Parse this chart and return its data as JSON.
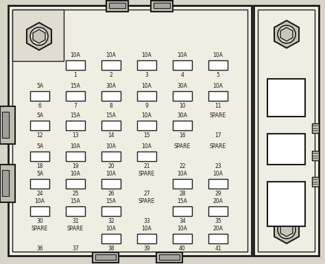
{
  "bg_color": "#e8e4d8",
  "fuses": [
    {
      "label": "10A",
      "num": "1",
      "col": 1,
      "row": 0,
      "has_fuse": true
    },
    {
      "label": "10A",
      "num": "2",
      "col": 2,
      "row": 0,
      "has_fuse": true
    },
    {
      "label": "10A",
      "num": "3",
      "col": 3,
      "row": 0,
      "has_fuse": true
    },
    {
      "label": "10A",
      "num": "4",
      "col": 4,
      "row": 0,
      "has_fuse": true
    },
    {
      "label": "10A",
      "num": "5",
      "col": 5,
      "row": 0,
      "has_fuse": true
    },
    {
      "label": "5A",
      "num": "6",
      "col": 0,
      "row": 1,
      "has_fuse": true
    },
    {
      "label": "15A",
      "num": "7",
      "col": 1,
      "row": 1,
      "has_fuse": true
    },
    {
      "label": "30A",
      "num": "8",
      "col": 2,
      "row": 1,
      "has_fuse": true
    },
    {
      "label": "10A",
      "num": "9",
      "col": 3,
      "row": 1,
      "has_fuse": true
    },
    {
      "label": "30A",
      "num": "10",
      "col": 4,
      "row": 1,
      "has_fuse": true
    },
    {
      "label": "10A",
      "num": "11",
      "col": 5,
      "row": 1,
      "has_fuse": true
    },
    {
      "label": "5A",
      "num": "12",
      "col": 0,
      "row": 2,
      "has_fuse": true
    },
    {
      "label": "15A",
      "num": "13",
      "col": 1,
      "row": 2,
      "has_fuse": true
    },
    {
      "label": "15A",
      "num": "14",
      "col": 2,
      "row": 2,
      "has_fuse": true
    },
    {
      "label": "10A",
      "num": "15",
      "col": 3,
      "row": 2,
      "has_fuse": true
    },
    {
      "label": "30A",
      "num": "16",
      "col": 4,
      "row": 2,
      "has_fuse": true
    },
    {
      "label": "SPARE",
      "num": "17",
      "col": 5,
      "row": 2,
      "has_fuse": false
    },
    {
      "label": "5A",
      "num": "18",
      "col": 0,
      "row": 3,
      "has_fuse": true
    },
    {
      "label": "10A",
      "num": "19",
      "col": 1,
      "row": 3,
      "has_fuse": true
    },
    {
      "label": "10A",
      "num": "20",
      "col": 2,
      "row": 3,
      "has_fuse": true
    },
    {
      "label": "10A",
      "num": "21",
      "col": 3,
      "row": 3,
      "has_fuse": true
    },
    {
      "label": "SPARE",
      "num": "22",
      "col": 4,
      "row": 3,
      "has_fuse": false
    },
    {
      "label": "SPARE",
      "num": "23",
      "col": 5,
      "row": 3,
      "has_fuse": false
    },
    {
      "label": "5A",
      "num": "24",
      "col": 0,
      "row": 4,
      "has_fuse": true
    },
    {
      "label": "10A",
      "num": "25",
      "col": 1,
      "row": 4,
      "has_fuse": true
    },
    {
      "label": "10A",
      "num": "26",
      "col": 2,
      "row": 4,
      "has_fuse": true
    },
    {
      "label": "SPARE",
      "num": "27",
      "col": 3,
      "row": 4,
      "has_fuse": false
    },
    {
      "label": "10A",
      "num": "28",
      "col": 4,
      "row": 4,
      "has_fuse": true
    },
    {
      "label": "10A",
      "num": "29",
      "col": 5,
      "row": 4,
      "has_fuse": true
    },
    {
      "label": "10A",
      "num": "30",
      "col": 0,
      "row": 5,
      "has_fuse": true
    },
    {
      "label": "15A",
      "num": "31",
      "col": 1,
      "row": 5,
      "has_fuse": true
    },
    {
      "label": "15A",
      "num": "32",
      "col": 2,
      "row": 5,
      "has_fuse": true
    },
    {
      "label": "SPARE",
      "num": "33",
      "col": 3,
      "row": 5,
      "has_fuse": false
    },
    {
      "label": "15A",
      "num": "34",
      "col": 4,
      "row": 5,
      "has_fuse": true
    },
    {
      "label": "20A",
      "num": "35",
      "col": 5,
      "row": 5,
      "has_fuse": true
    },
    {
      "label": "SPARE",
      "num": "36",
      "col": 0,
      "row": 6,
      "has_fuse": false
    },
    {
      "label": "SPARE",
      "num": "37",
      "col": 1,
      "row": 6,
      "has_fuse": false
    },
    {
      "label": "10A",
      "num": "38",
      "col": 2,
      "row": 6,
      "has_fuse": true
    },
    {
      "label": "10A",
      "num": "39",
      "col": 3,
      "row": 6,
      "has_fuse": true
    },
    {
      "label": "10A",
      "num": "40",
      "col": 4,
      "row": 6,
      "has_fuse": true
    },
    {
      "label": "20A",
      "num": "41",
      "col": 5,
      "row": 6,
      "has_fuse": true
    }
  ]
}
